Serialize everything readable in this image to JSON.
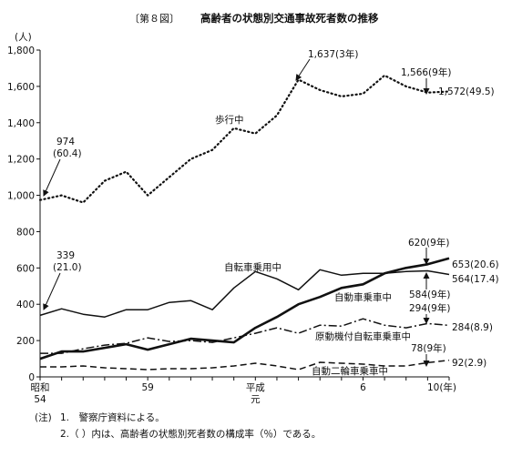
{
  "figure": {
    "number": "〔第８図〕",
    "title": "高齢者の状態別交通事故死者数の推移"
  },
  "chart_data": {
    "type": "line",
    "title": "高齢者の状態別交通事故死者数の推移",
    "ylabel": "(人)",
    "xlabel": "(年)",
    "ylim": [
      0,
      1800
    ],
    "yticks": [
      0,
      200,
      400,
      600,
      800,
      1000,
      1200,
      1400,
      1600,
      1800
    ],
    "yticklabels": [
      "0",
      "200",
      "400",
      "600",
      "800",
      "1,000",
      "1,200",
      "1,400",
      "1,600",
      "1,800"
    ],
    "x": [
      "54",
      "55",
      "56",
      "57",
      "58",
      "59",
      "60",
      "61",
      "62",
      "63",
      "元",
      "2",
      "3",
      "4",
      "5",
      "6",
      "7",
      "8",
      "9",
      "10"
    ],
    "xticklabels": [
      {
        "index": 0,
        "lines": [
          "昭和",
          "54"
        ]
      },
      {
        "index": 5,
        "lines": [
          "59"
        ]
      },
      {
        "index": 10,
        "lines": [
          "平成",
          "元"
        ]
      },
      {
        "index": 15,
        "lines": [
          "6"
        ]
      },
      {
        "index": 19,
        "lines": [
          "10(年)"
        ]
      }
    ],
    "grid": false,
    "series": [
      {
        "name": "歩行中",
        "style": "dotted",
        "values": [
          974,
          1000,
          960,
          1080,
          1130,
          1000,
          1100,
          1200,
          1250,
          1370,
          1340,
          1440,
          1637,
          1580,
          1545,
          1560,
          1660,
          1600,
          1566,
          1572
        ]
      },
      {
        "name": "自転車乗用中",
        "style": "solid",
        "values": [
          339,
          375,
          345,
          330,
          370,
          370,
          410,
          420,
          370,
          490,
          580,
          540,
          480,
          590,
          560,
          570,
          570,
          580,
          584,
          564
        ]
      },
      {
        "name": "自動車乗車中",
        "style": "solid-thick",
        "values": [
          100,
          140,
          140,
          160,
          180,
          150,
          180,
          210,
          200,
          190,
          270,
          330,
          400,
          440,
          490,
          510,
          570,
          600,
          620,
          653
        ]
      },
      {
        "name": "原動機付自転車乗車中",
        "style": "dashdot",
        "values": [
          130,
          130,
          155,
          175,
          185,
          215,
          195,
          200,
          190,
          215,
          240,
          270,
          240,
          285,
          280,
          320,
          285,
          270,
          294,
          284
        ]
      },
      {
        "name": "自動二輪車乗車中",
        "style": "dashed",
        "values": [
          55,
          55,
          60,
          50,
          45,
          40,
          45,
          45,
          50,
          60,
          75,
          60,
          40,
          80,
          75,
          70,
          60,
          60,
          78,
          92
        ]
      }
    ],
    "series_labels": {
      "walk": "歩行中",
      "bike": "自転車乗用中",
      "car": "自動車乗車中",
      "moped": "原動機付自転車乗車中",
      "moto": "自動二輪車乗車中"
    },
    "annotations": {
      "walk_start": [
        "974",
        "(60.4)"
      ],
      "bike_start": [
        "339",
        "(21.0)"
      ],
      "walk_peak": "1,637(3年)",
      "walk_9": "1,566(9年)",
      "walk_end": "1,572(49.5)",
      "car_9": "620(9年)",
      "car_end": "653(20.6)",
      "bike_end": "564(17.4)",
      "bike_9": "584(9年)",
      "moped_9": "294(9年)",
      "moped_end": "284(8.9)",
      "moto_9": "78(9年)",
      "moto_end": "92(2.9)"
    }
  },
  "notes": {
    "prefix": "(注)",
    "items": [
      "1.　警察庁資料による。",
      "2.（ ）内は、高齢者の状態別死者数の構成率（％）である。"
    ]
  }
}
